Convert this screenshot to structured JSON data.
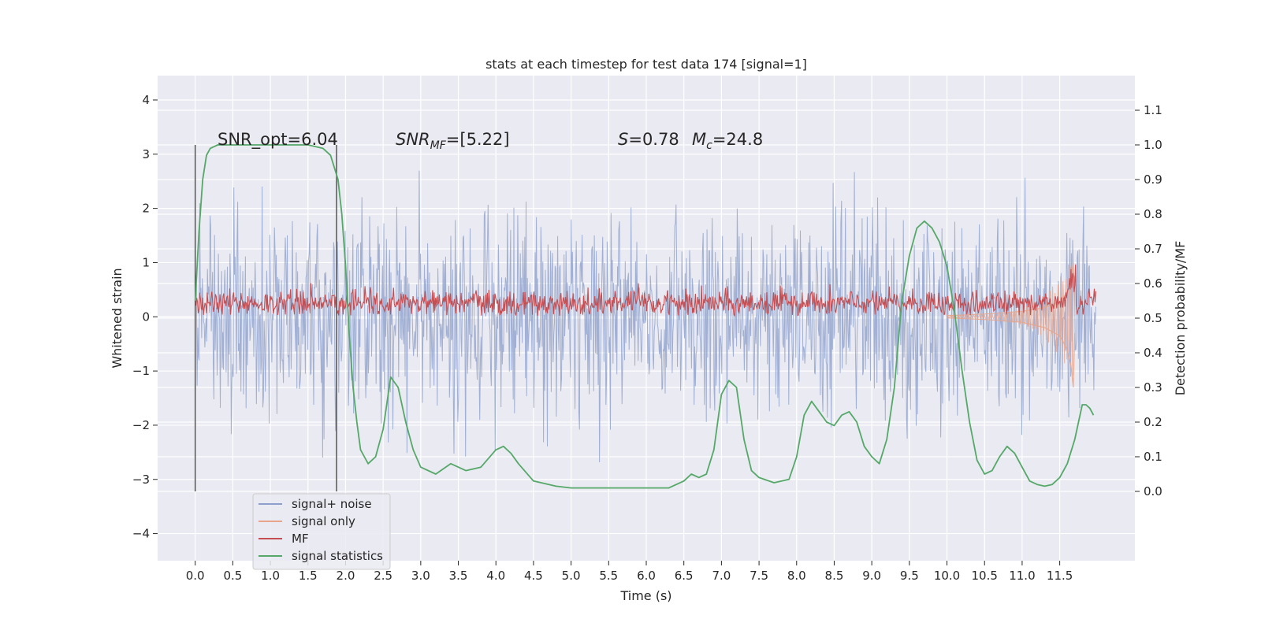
{
  "chart_data": {
    "type": "line",
    "title": "stats at each timestep for test data 174 [signal=1]",
    "xlabel": "Time (s)",
    "ylabel_left": "Whitened strain",
    "ylabel_right": "Detection probability/MF",
    "xlim": [
      -0.5,
      12.5
    ],
    "ylim_left": [
      -4.5,
      4.45
    ],
    "ylim_right": [
      -0.2,
      1.2
    ],
    "x_ticks": [
      "0.0",
      "0.5",
      "1.0",
      "1.5",
      "2.0",
      "2.5",
      "3.0",
      "3.5",
      "4.0",
      "4.5",
      "5.0",
      "5.5",
      "6.0",
      "6.5",
      "7.0",
      "7.5",
      "8.0",
      "8.5",
      "9.0",
      "9.5",
      "10.0",
      "10.5",
      "11.0",
      "11.5"
    ],
    "y_ticks_left": [
      "4",
      "3",
      "2",
      "1",
      "0",
      "−1",
      "−2",
      "−3",
      "−4"
    ],
    "y_ticks_right": [
      "1.1",
      "1.0",
      "0.9",
      "0.8",
      "0.7",
      "0.6",
      "0.5",
      "0.4",
      "0.3",
      "0.2",
      "0.1",
      "0.0"
    ],
    "grid": true,
    "legend_position": "bottom-left",
    "annotations": {
      "snr_opt": "SNR_opt=6.04",
      "snr_mf_base": "SNR",
      "snr_mf_sub": "MF",
      "snr_mf_value": "=[5.22]",
      "s_label": "S",
      "s_value": "=0.78",
      "mc_base": "M",
      "mc_sub": "c",
      "mc_value": "=24.8"
    },
    "vertical_markers_x": [
      0.0,
      1.88
    ],
    "series": [
      {
        "name": "signal+ noise",
        "color": "#8da0cb",
        "axis": "left",
        "x_range": [
          0.0,
          11.98
        ],
        "approx_envelope": [
          -3.5,
          3.5
        ]
      },
      {
        "name": "signal only",
        "color": "#e8a58c",
        "axis": "left",
        "x": [
          10.0,
          10.5,
          11.0,
          11.3,
          11.5,
          11.6,
          11.65,
          11.68,
          11.7
        ],
        "y_upper": [
          0.02,
          0.05,
          0.1,
          0.17,
          0.28,
          0.45,
          0.7,
          1.0,
          0.2
        ],
        "y_lower": [
          -0.02,
          -0.05,
          -0.1,
          -0.2,
          -0.35,
          -0.6,
          -0.9,
          -1.3,
          -0.3
        ]
      },
      {
        "name": "MF",
        "color": "#c44e52",
        "axis": "left",
        "x_range": [
          0.0,
          11.98
        ],
        "approx_band": [
          0.0,
          0.55
        ]
      },
      {
        "name": "signal statistics",
        "color": "#55a868",
        "axis": "right",
        "x": [
          0.0,
          0.05,
          0.1,
          0.15,
          0.2,
          0.3,
          0.5,
          1.0,
          1.5,
          1.7,
          1.8,
          1.9,
          1.95,
          2.0,
          2.05,
          2.1,
          2.15,
          2.2,
          2.25,
          2.3,
          2.4,
          2.5,
          2.6,
          2.7,
          2.8,
          2.9,
          3.0,
          3.2,
          3.4,
          3.6,
          3.8,
          4.0,
          4.1,
          4.2,
          4.3,
          4.5,
          4.8,
          5.0,
          5.5,
          6.0,
          6.3,
          6.5,
          6.6,
          6.7,
          6.8,
          6.9,
          7.0,
          7.1,
          7.2,
          7.3,
          7.4,
          7.5,
          7.7,
          7.9,
          8.0,
          8.1,
          8.2,
          8.3,
          8.4,
          8.5,
          8.6,
          8.7,
          8.8,
          8.9,
          9.0,
          9.1,
          9.2,
          9.3,
          9.4,
          9.5,
          9.6,
          9.7,
          9.8,
          9.9,
          10.0,
          10.1,
          10.2,
          10.3,
          10.4,
          10.5,
          10.6,
          10.7,
          10.8,
          10.9,
          11.0,
          11.1,
          11.2,
          11.3,
          11.4,
          11.5,
          11.6,
          11.7,
          11.8,
          11.85,
          11.9,
          11.95
        ],
        "y": [
          0.55,
          0.75,
          0.9,
          0.97,
          0.99,
          1.0,
          1.0,
          1.0,
          1.0,
          0.99,
          0.97,
          0.9,
          0.8,
          0.65,
          0.45,
          0.3,
          0.2,
          0.12,
          0.1,
          0.08,
          0.1,
          0.18,
          0.33,
          0.3,
          0.2,
          0.12,
          0.07,
          0.05,
          0.08,
          0.06,
          0.07,
          0.12,
          0.13,
          0.11,
          0.08,
          0.03,
          0.015,
          0.01,
          0.01,
          0.01,
          0.01,
          0.03,
          0.05,
          0.04,
          0.05,
          0.12,
          0.28,
          0.32,
          0.3,
          0.15,
          0.06,
          0.04,
          0.025,
          0.035,
          0.1,
          0.22,
          0.26,
          0.23,
          0.2,
          0.19,
          0.22,
          0.23,
          0.2,
          0.13,
          0.1,
          0.08,
          0.15,
          0.3,
          0.55,
          0.68,
          0.76,
          0.78,
          0.76,
          0.72,
          0.65,
          0.52,
          0.35,
          0.2,
          0.09,
          0.05,
          0.06,
          0.1,
          0.13,
          0.11,
          0.07,
          0.03,
          0.02,
          0.015,
          0.02,
          0.04,
          0.08,
          0.15,
          0.25,
          0.25,
          0.24,
          0.22
        ]
      }
    ]
  }
}
